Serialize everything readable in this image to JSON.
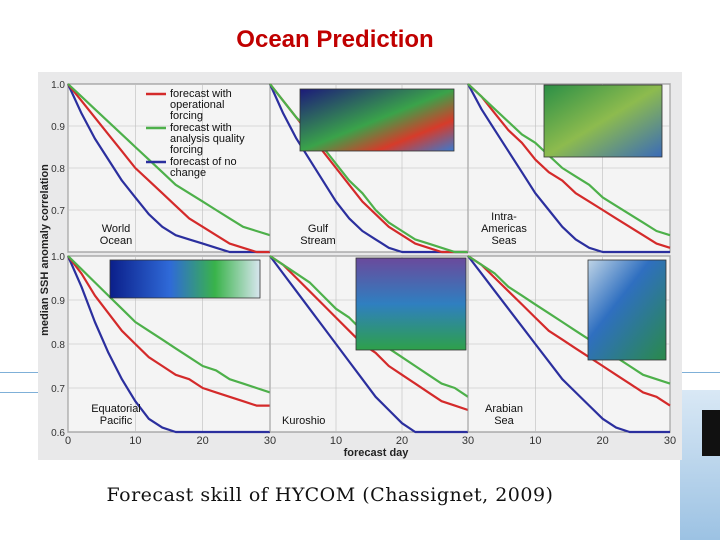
{
  "slide": {
    "title": "Ocean Prediction",
    "caption": "Forecast skill of HYCOM (Chassignet, 2009)"
  },
  "chart_data": {
    "type": "line",
    "ylabel": "median SSH anomaly correlation",
    "xlabel": "forecast day",
    "x_ticks": [
      0,
      10,
      20,
      30
    ],
    "y_ticks": [
      0.6,
      0.7,
      0.8,
      0.9,
      1.0
    ],
    "y_tick_labels_top": [
      "0.7",
      "0.8",
      "0.9",
      "1.0"
    ],
    "y_tick_labels_bottom": [
      "0.6",
      "0.7",
      "0.8",
      "0.9",
      "1.0"
    ],
    "xlim": [
      0,
      30
    ],
    "ylim": [
      0.6,
      1.0
    ],
    "series_colors": {
      "forecast with operational forcing": "#d42a2a",
      "forecast with analysis quality forcing": "#4db04a",
      "forecast of no change": "#2b2f9e"
    },
    "legend": [
      "forecast with operational forcing",
      "forecast with analysis quality forcing",
      "forecast of no change"
    ],
    "x": [
      0,
      2,
      4,
      6,
      8,
      10,
      12,
      14,
      16,
      18,
      20,
      22,
      24,
      26,
      28,
      30
    ],
    "panels": [
      {
        "id": "world-ocean",
        "label": [
          "World",
          "Ocean"
        ],
        "series": [
          {
            "name": "forecast of no change",
            "values": [
              1.0,
              0.93,
              0.87,
              0.82,
              0.77,
              0.73,
              0.69,
              0.66,
              0.64,
              0.63,
              0.62,
              0.61,
              0.6,
              0.6,
              0.6,
              0.6
            ]
          },
          {
            "name": "forecast with operational forcing",
            "values": [
              1.0,
              0.96,
              0.92,
              0.88,
              0.84,
              0.8,
              0.77,
              0.74,
              0.71,
              0.68,
              0.66,
              0.64,
              0.62,
              0.61,
              0.6,
              0.6
            ]
          },
          {
            "name": "forecast with analysis quality forcing",
            "values": [
              1.0,
              0.97,
              0.94,
              0.91,
              0.88,
              0.85,
              0.82,
              0.79,
              0.76,
              0.74,
              0.72,
              0.7,
              0.68,
              0.66,
              0.65,
              0.64
            ]
          }
        ]
      },
      {
        "id": "gulf-stream",
        "label": [
          "Gulf",
          "Stream"
        ],
        "series": [
          {
            "name": "forecast of no change",
            "values": [
              1.0,
              0.93,
              0.87,
              0.82,
              0.77,
              0.72,
              0.68,
              0.65,
              0.63,
              0.61,
              0.6,
              0.6,
              0.6,
              0.6,
              0.6,
              0.6
            ]
          },
          {
            "name": "forecast with operational forcing",
            "values": [
              1.0,
              0.96,
              0.92,
              0.88,
              0.84,
              0.8,
              0.76,
              0.72,
              0.69,
              0.66,
              0.64,
              0.62,
              0.61,
              0.6,
              0.6,
              0.6
            ]
          },
          {
            "name": "forecast with analysis quality forcing",
            "values": [
              1.0,
              0.96,
              0.92,
              0.89,
              0.85,
              0.81,
              0.77,
              0.74,
              0.7,
              0.67,
              0.65,
              0.63,
              0.62,
              0.61,
              0.6,
              0.6
            ]
          }
        ]
      },
      {
        "id": "intra-americas-seas",
        "label": [
          "Intra-",
          "Americas",
          "Seas"
        ],
        "series": [
          {
            "name": "forecast of no change",
            "values": [
              1.0,
              0.94,
              0.89,
              0.84,
              0.79,
              0.74,
              0.7,
              0.66,
              0.63,
              0.61,
              0.6,
              0.6,
              0.6,
              0.6,
              0.6,
              0.6
            ]
          },
          {
            "name": "forecast with operational forcing",
            "values": [
              1.0,
              0.97,
              0.93,
              0.89,
              0.86,
              0.82,
              0.79,
              0.77,
              0.74,
              0.72,
              0.7,
              0.68,
              0.66,
              0.64,
              0.62,
              0.61
            ]
          },
          {
            "name": "forecast with analysis quality forcing",
            "values": [
              1.0,
              0.97,
              0.94,
              0.91,
              0.88,
              0.86,
              0.83,
              0.8,
              0.78,
              0.76,
              0.73,
              0.71,
              0.69,
              0.67,
              0.65,
              0.64
            ]
          }
        ]
      },
      {
        "id": "equatorial-pacific",
        "label": [
          "Equatorial",
          "Pacific"
        ],
        "series": [
          {
            "name": "forecast of no change",
            "values": [
              1.0,
              0.93,
              0.85,
              0.78,
              0.72,
              0.67,
              0.63,
              0.61,
              0.6,
              0.6,
              0.6,
              0.6,
              0.6,
              0.6,
              0.6,
              0.6
            ]
          },
          {
            "name": "forecast with operational forcing",
            "values": [
              1.0,
              0.96,
              0.91,
              0.87,
              0.83,
              0.8,
              0.77,
              0.75,
              0.73,
              0.72,
              0.7,
              0.69,
              0.68,
              0.67,
              0.66,
              0.66
            ]
          },
          {
            "name": "forecast with analysis quality forcing",
            "values": [
              1.0,
              0.97,
              0.94,
              0.91,
              0.88,
              0.85,
              0.83,
              0.81,
              0.79,
              0.77,
              0.75,
              0.74,
              0.72,
              0.71,
              0.7,
              0.69
            ]
          }
        ]
      },
      {
        "id": "kuroshio",
        "label": [
          "Kuroshio"
        ],
        "series": [
          {
            "name": "forecast of no change",
            "values": [
              1.0,
              0.96,
              0.92,
              0.88,
              0.84,
              0.8,
              0.76,
              0.72,
              0.68,
              0.65,
              0.62,
              0.6,
              0.6,
              0.6,
              0.6,
              0.6
            ]
          },
          {
            "name": "forecast with operational forcing",
            "values": [
              1.0,
              0.98,
              0.95,
              0.92,
              0.89,
              0.86,
              0.83,
              0.8,
              0.78,
              0.75,
              0.73,
              0.71,
              0.69,
              0.67,
              0.66,
              0.65
            ]
          },
          {
            "name": "forecast with analysis quality forcing",
            "values": [
              1.0,
              0.98,
              0.96,
              0.94,
              0.91,
              0.88,
              0.86,
              0.83,
              0.81,
              0.79,
              0.77,
              0.75,
              0.73,
              0.71,
              0.7,
              0.68
            ]
          }
        ]
      },
      {
        "id": "arabian-sea",
        "label": [
          "Arabian",
          "Sea"
        ],
        "series": [
          {
            "name": "forecast of no change",
            "values": [
              1.0,
              0.96,
              0.92,
              0.88,
              0.84,
              0.8,
              0.76,
              0.72,
              0.69,
              0.66,
              0.63,
              0.61,
              0.6,
              0.6,
              0.6,
              0.6
            ]
          },
          {
            "name": "forecast with operational forcing",
            "values": [
              1.0,
              0.98,
              0.95,
              0.92,
              0.89,
              0.86,
              0.83,
              0.81,
              0.79,
              0.77,
              0.75,
              0.73,
              0.71,
              0.69,
              0.68,
              0.66
            ]
          },
          {
            "name": "forecast with analysis quality forcing",
            "values": [
              1.0,
              0.98,
              0.96,
              0.93,
              0.91,
              0.89,
              0.87,
              0.85,
              0.83,
              0.81,
              0.79,
              0.77,
              0.75,
              0.73,
              0.72,
              0.71
            ]
          }
        ]
      }
    ]
  }
}
